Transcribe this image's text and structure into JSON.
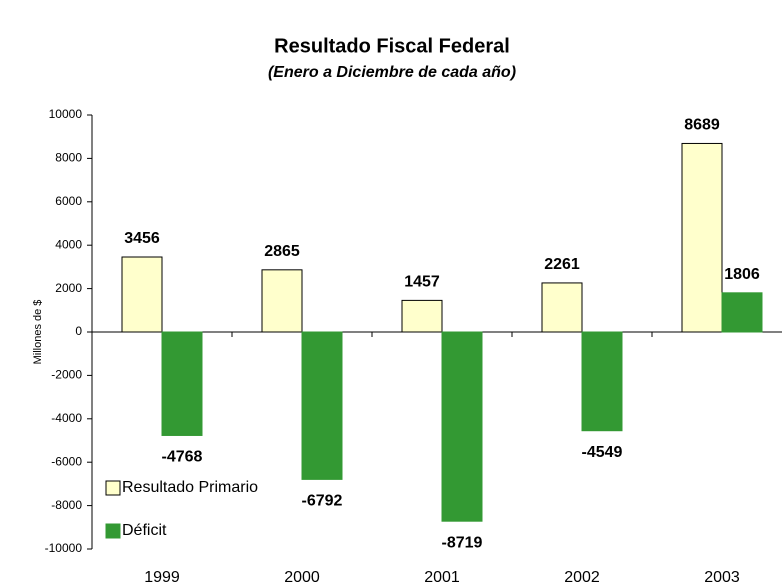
{
  "chart_data": {
    "type": "bar",
    "title": "Resultado Fiscal Federal",
    "subtitle": "(Enero a Diciembre de cada año)",
    "y_label": "Millones de $",
    "categories": [
      "1999",
      "2000",
      "2001",
      "2002",
      "2003"
    ],
    "series": [
      {
        "name": "Resultado Primario",
        "color": "#ffffcc",
        "values": [
          3456,
          2865,
          1457,
          2261,
          8689
        ]
      },
      {
        "name": "Déficit",
        "color": "#339933",
        "values": [
          -4768,
          -6792,
          -8719,
          -4549,
          1806
        ]
      }
    ],
    "ylim": [
      -10000,
      10000
    ],
    "yticks": [
      -10000,
      -8000,
      -6000,
      -4000,
      -2000,
      0,
      2000,
      4000,
      6000,
      8000,
      10000
    ],
    "legend": "lower-left"
  }
}
